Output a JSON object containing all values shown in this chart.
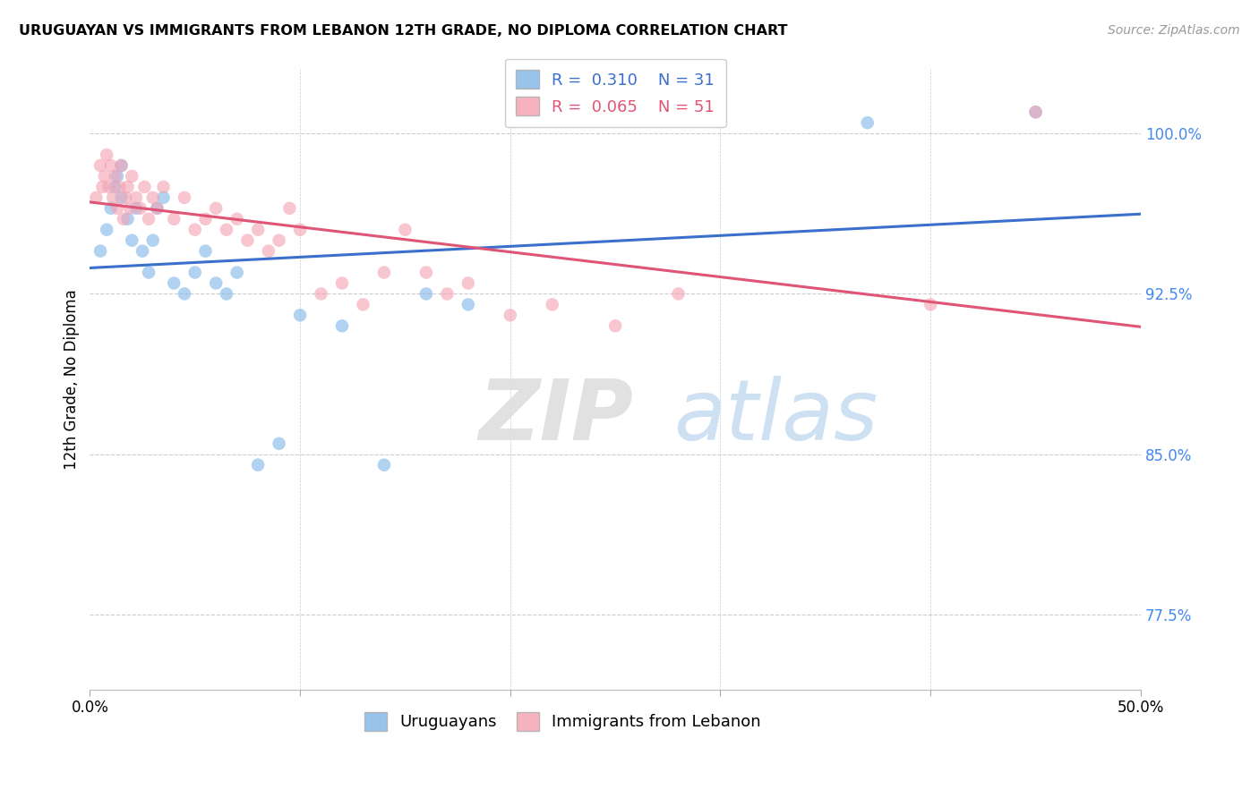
{
  "title": "URUGUAYAN VS IMMIGRANTS FROM LEBANON 12TH GRADE, NO DIPLOMA CORRELATION CHART",
  "source": "Source: ZipAtlas.com",
  "ylabel": "12th Grade, No Diploma",
  "yticks": [
    77.5,
    85.0,
    92.5,
    100.0
  ],
  "xlim": [
    0.0,
    50.0
  ],
  "ylim": [
    74.0,
    103.0
  ],
  "blue_color": "#7EB6E8",
  "pink_color": "#F4A0B0",
  "blue_line_color": "#3B6FCC",
  "pink_line_color": "#E05575",
  "R_blue": 0.31,
  "N_blue": 31,
  "R_pink": 0.065,
  "N_pink": 51,
  "legend_label_blue": "Uruguayans",
  "legend_label_pink": "Immigrants from Lebanon",
  "uruguayan_x": [
    0.5,
    0.8,
    1.0,
    1.2,
    1.3,
    1.5,
    1.5,
    1.8,
    2.0,
    2.2,
    2.5,
    2.8,
    3.0,
    3.2,
    3.5,
    4.0,
    4.5,
    5.0,
    5.5,
    6.0,
    6.5,
    7.0,
    8.0,
    9.0,
    10.0,
    12.0,
    14.0,
    16.0,
    18.0,
    37.0,
    45.0
  ],
  "uruguayan_y": [
    94.5,
    95.5,
    96.5,
    97.5,
    98.0,
    97.0,
    98.5,
    96.0,
    95.0,
    96.5,
    94.5,
    93.5,
    95.0,
    96.5,
    97.0,
    93.0,
    92.5,
    93.5,
    94.5,
    93.0,
    92.5,
    93.5,
    84.5,
    85.5,
    91.5,
    91.0,
    84.5,
    92.5,
    92.0,
    100.5,
    101.0
  ],
  "lebanon_x": [
    0.3,
    0.5,
    0.6,
    0.7,
    0.8,
    0.9,
    1.0,
    1.1,
    1.2,
    1.3,
    1.4,
    1.5,
    1.6,
    1.7,
    1.8,
    1.9,
    2.0,
    2.2,
    2.4,
    2.6,
    2.8,
    3.0,
    3.2,
    3.5,
    4.0,
    4.5,
    5.0,
    5.5,
    6.0,
    6.5,
    7.0,
    7.5,
    8.0,
    8.5,
    9.0,
    9.5,
    10.0,
    11.0,
    12.0,
    13.0,
    14.0,
    15.0,
    16.0,
    17.0,
    18.0,
    20.0,
    22.0,
    25.0,
    28.0,
    40.0,
    45.0
  ],
  "lebanon_y": [
    97.0,
    98.5,
    97.5,
    98.0,
    99.0,
    97.5,
    98.5,
    97.0,
    98.0,
    96.5,
    97.5,
    98.5,
    96.0,
    97.0,
    97.5,
    96.5,
    98.0,
    97.0,
    96.5,
    97.5,
    96.0,
    97.0,
    96.5,
    97.5,
    96.0,
    97.0,
    95.5,
    96.0,
    96.5,
    95.5,
    96.0,
    95.0,
    95.5,
    94.5,
    95.0,
    96.5,
    95.5,
    92.5,
    93.0,
    92.0,
    93.5,
    95.5,
    93.5,
    92.5,
    93.0,
    91.5,
    92.0,
    91.0,
    92.5,
    92.0,
    101.0
  ],
  "watermark_zip": "ZIP",
  "watermark_atlas": "atlas",
  "blue_tick_color": "#4488EE"
}
